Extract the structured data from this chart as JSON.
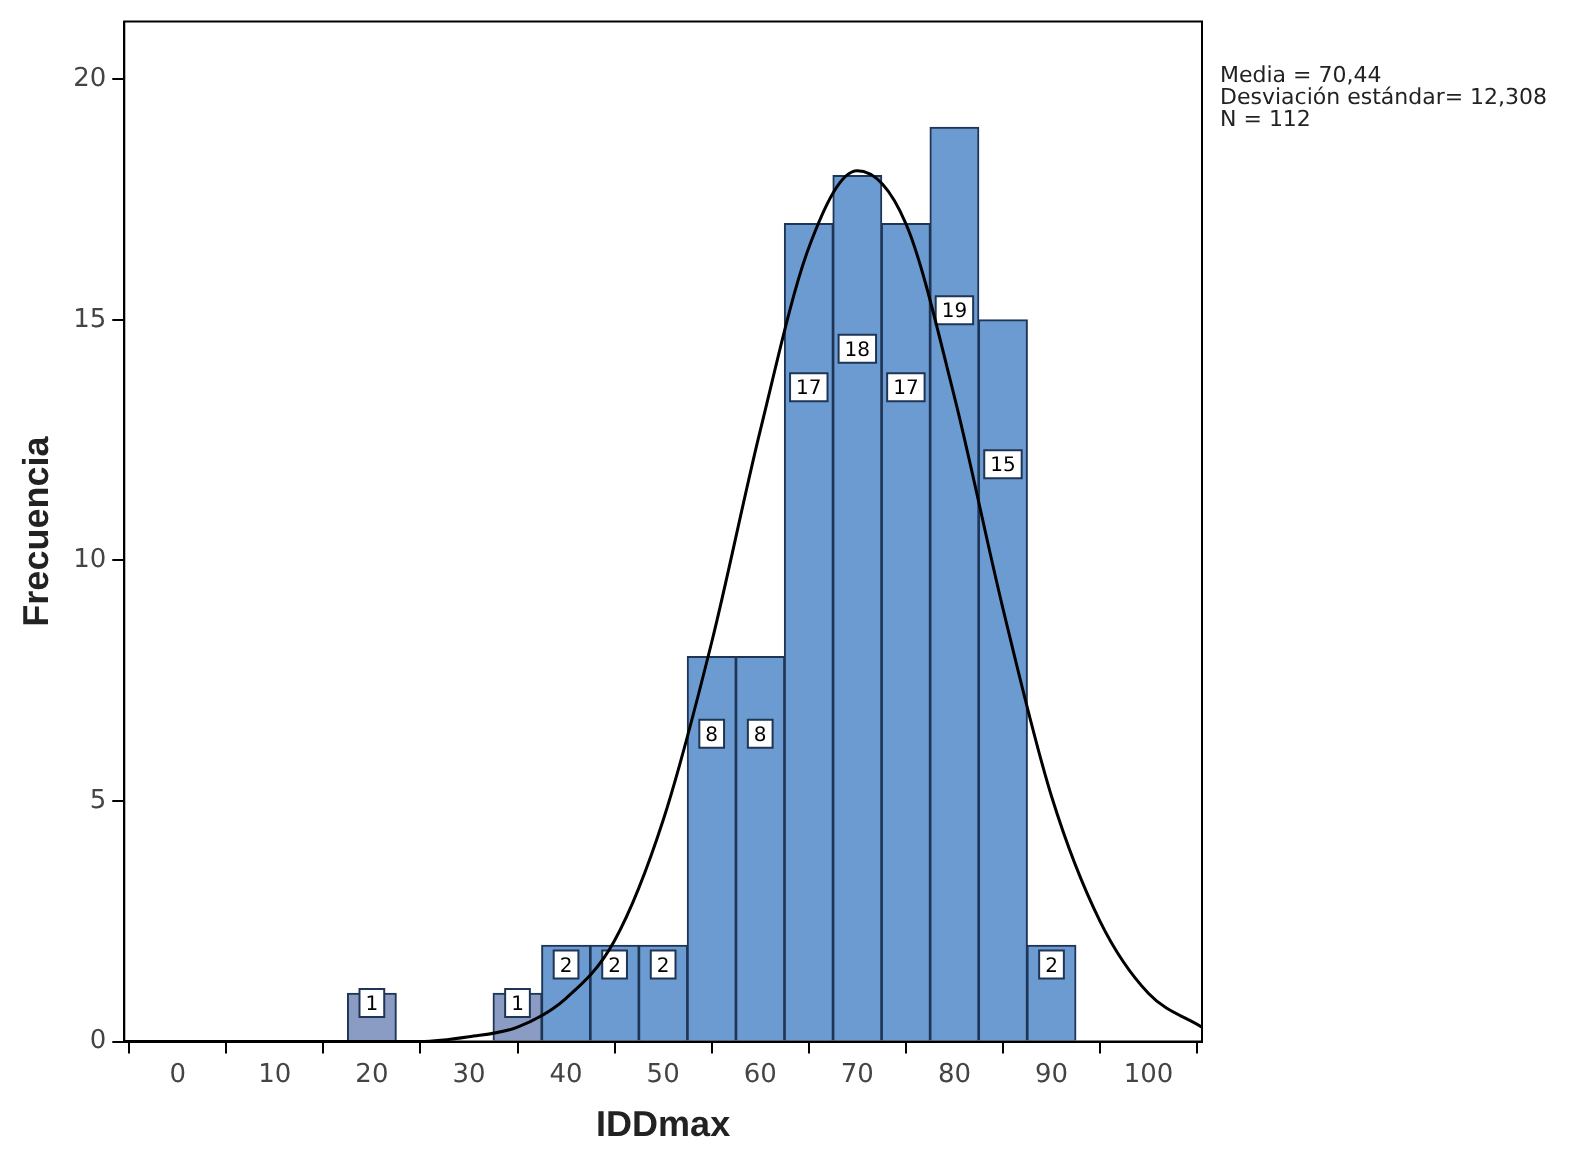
{
  "chart_data": {
    "type": "histogram",
    "xlabel": "IDDmax",
    "ylabel": "Frecuencia",
    "bins": [
      17.5,
      22.5,
      27.5,
      32.5,
      37.5,
      42.5,
      47.5,
      52.5,
      57.5,
      62.5,
      67.5,
      72.5,
      77.5,
      82.5,
      87.5,
      92.5
    ],
    "values": [
      1,
      0,
      0,
      1,
      2,
      2,
      2,
      8,
      8,
      17,
      18,
      17,
      19,
      15,
      2
    ],
    "value_labels": [
      "1",
      null,
      null,
      "1",
      "2",
      "2",
      "2",
      "8",
      "8",
      "17",
      "18",
      "17",
      "19",
      "15",
      "2"
    ],
    "colors": [
      "#8b9cc4",
      "#6b9bd1",
      "#6b9bd1",
      "#8b9cc4",
      "#6b9bd1",
      "#6b9bd1",
      "#6b9bd1",
      "#6b9bd1",
      "#6b9bd1",
      "#6b9bd1",
      "#6b9bd1",
      "#6b9bd1",
      "#6b9bd1",
      "#6b9bd1",
      "#6b9bd1"
    ],
    "series": [
      {
        "type": "line",
        "color": "#000000",
        "x": [
          -5.5,
          0,
          10,
          20,
          25,
          30,
          35,
          40,
          45,
          50,
          55,
          60,
          65,
          70,
          75,
          80,
          85,
          90,
          95,
          100,
          105.5
        ],
        "values": [
          0,
          0,
          0,
          0,
          0,
          0.1,
          0.3,
          0.9,
          2.1,
          4.6,
          8.3,
          12.7,
          16.5,
          18.1,
          17,
          13.4,
          9,
          5.1,
          2.5,
          1,
          0.3
        ]
      }
    ],
    "xlim": [
      -5.5,
      105.5
    ],
    "xticks": [
      0,
      10,
      20,
      30,
      40,
      50,
      60,
      70,
      80,
      90,
      100
    ],
    "ylim": [
      0,
      21.2
    ],
    "yticks": [
      0,
      5,
      10,
      15,
      20
    ],
    "grid": false,
    "legend": false,
    "marker": "none",
    "line_style": "solid",
    "annotations": [
      "Media = 70,44",
      "Desviación estándar= 12,308",
      "N = 112"
    ]
  }
}
